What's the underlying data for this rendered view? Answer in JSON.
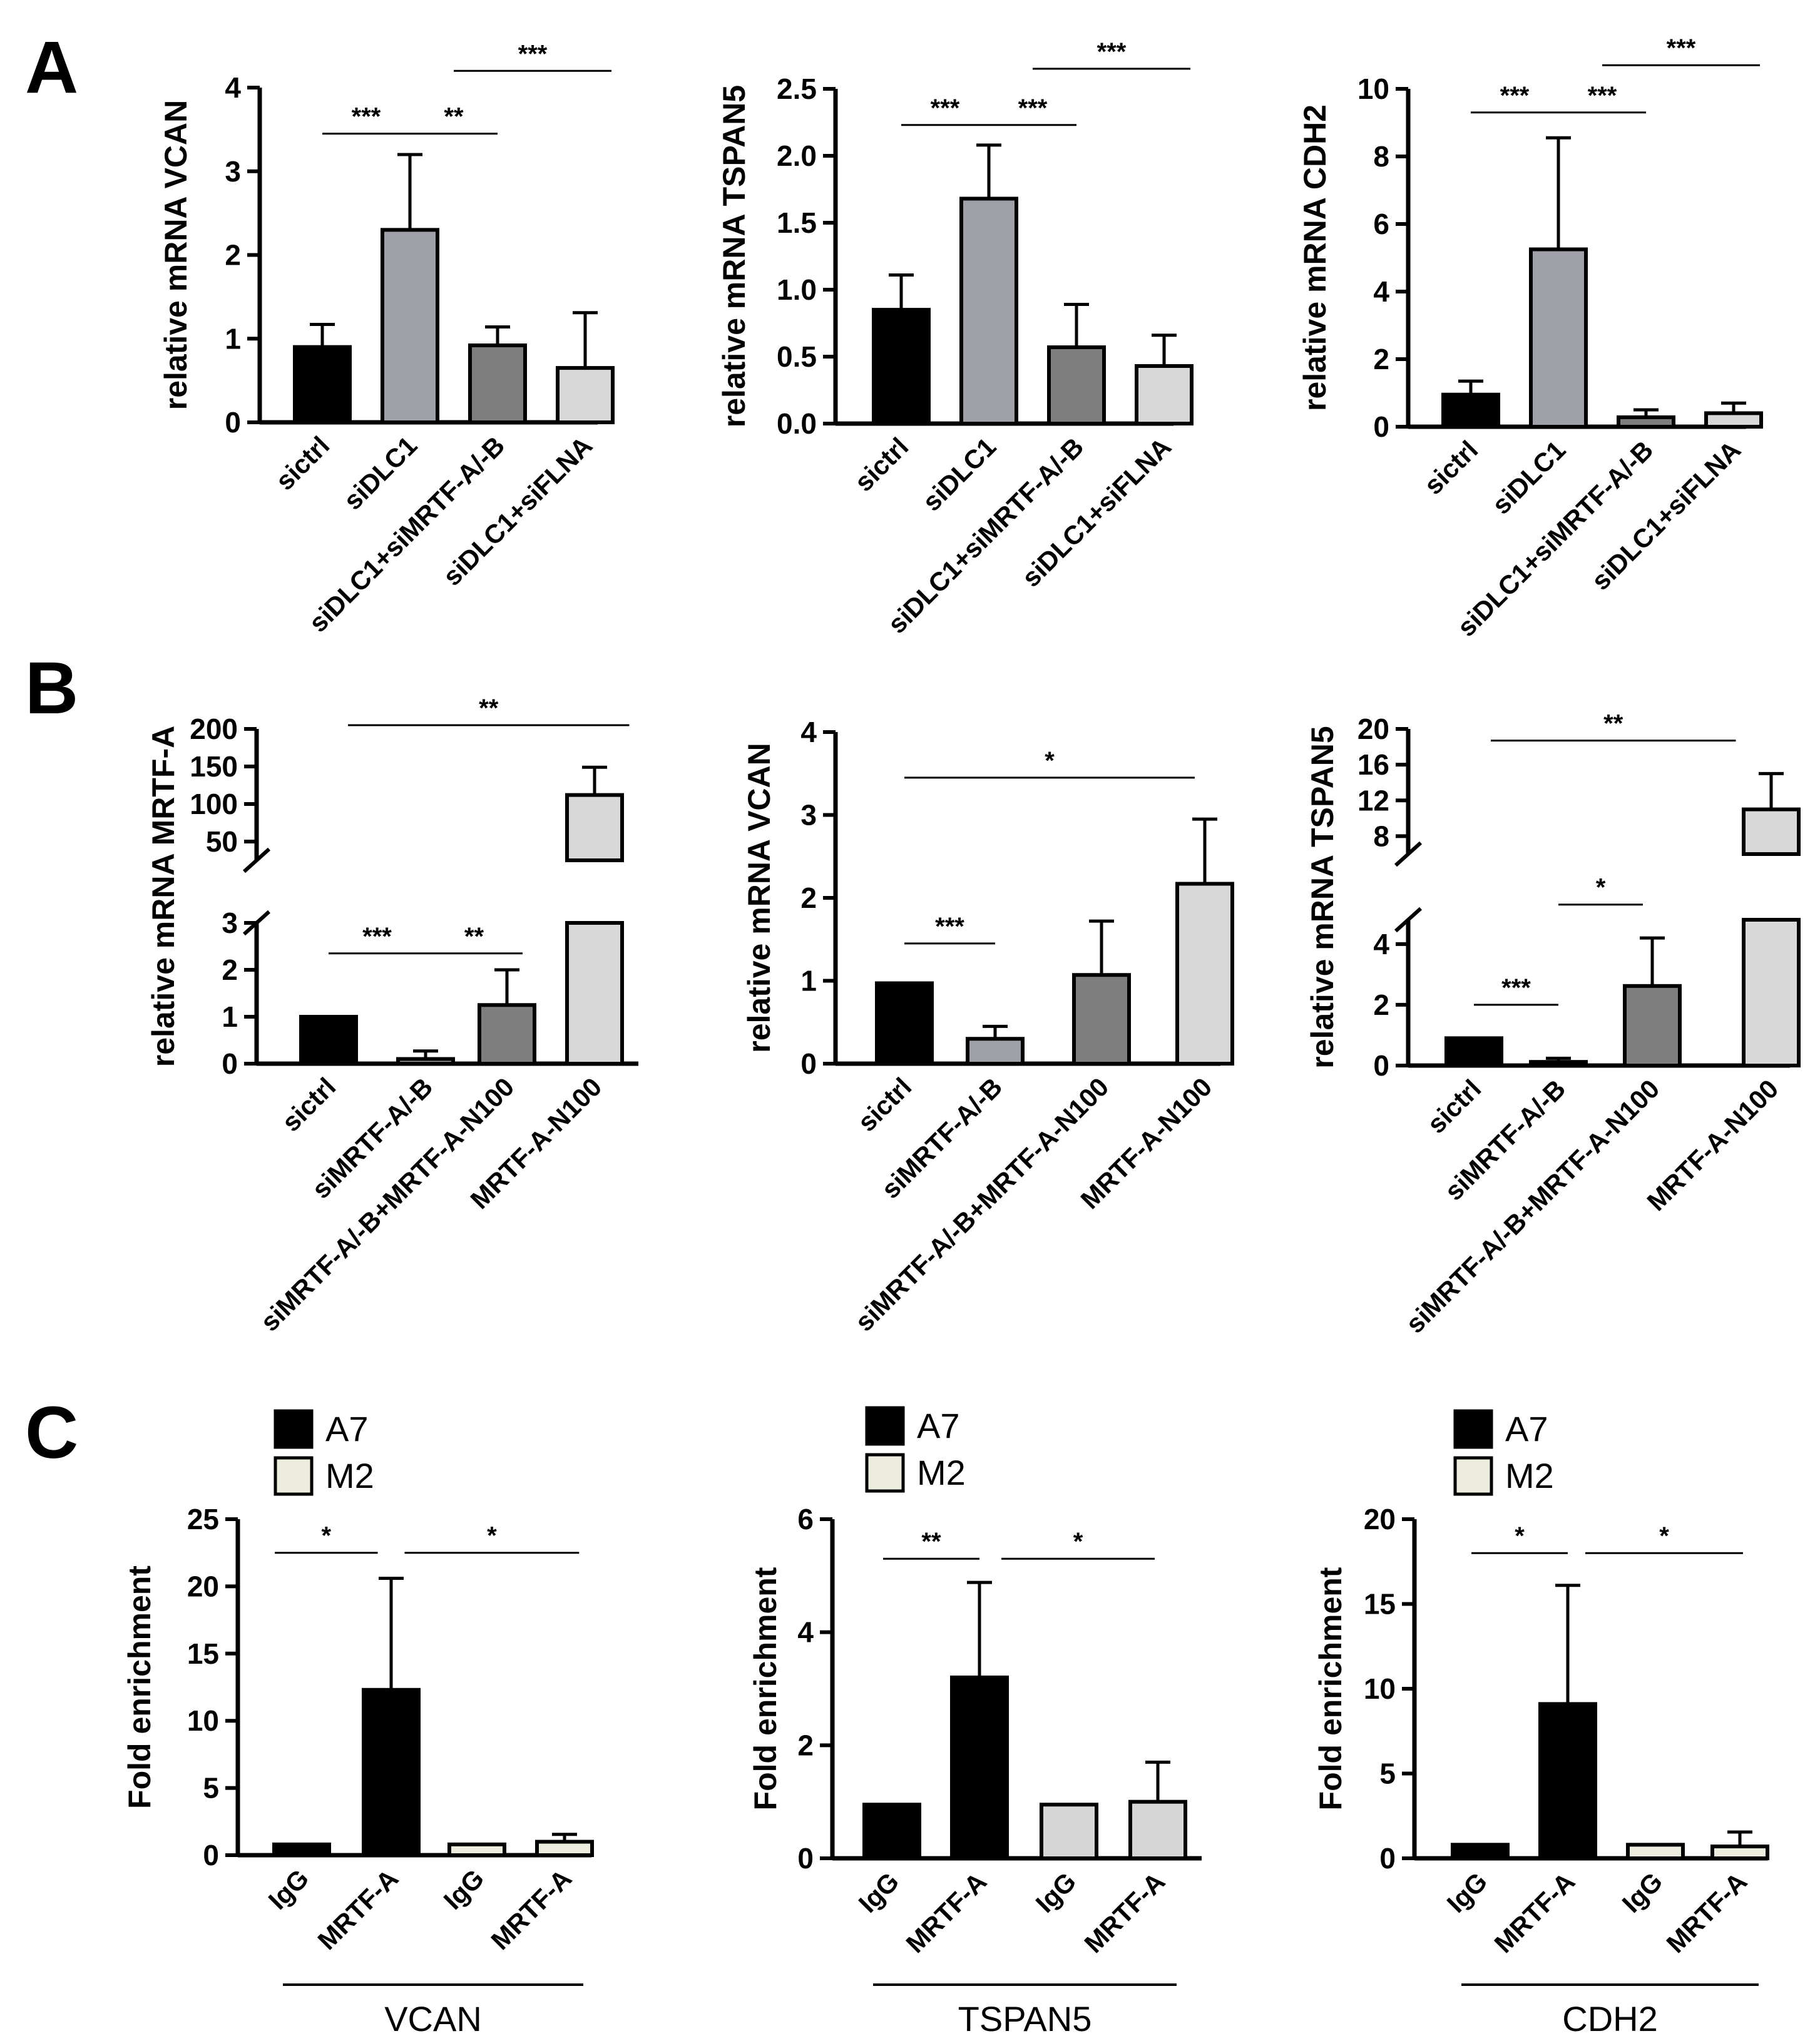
{
  "panels": [
    {
      "letter": "A"
    },
    {
      "letter": "B"
    },
    {
      "letter": "C"
    }
  ],
  "legend": {
    "entries": [
      {
        "name": "A7",
        "color": "#000000"
      },
      {
        "name": "M2",
        "color": "#ececdf"
      }
    ]
  },
  "chart_data": [
    {
      "id": "A1",
      "panel": "A",
      "type": "bar",
      "ylabel": "relative mRNA VCAN",
      "categories": [
        "sictrl",
        "siDLC1",
        "siDLC1+siMRTF-A/-B",
        "siDLC1+siFLNA"
      ],
      "values": [
        0.9,
        2.3,
        0.92,
        0.65
      ],
      "errors": [
        0.27,
        0.9,
        0.22,
        0.66
      ],
      "colors": [
        "#000000",
        "#a0a0a8",
        "#7e7e7e",
        "#d8d8d8"
      ],
      "ylim": [
        0,
        4
      ],
      "yticks": [
        0,
        1,
        2,
        3,
        4
      ],
      "ytick_labels": [
        "0",
        "1",
        "2",
        "3",
        "4"
      ],
      "significance": [
        {
          "label": "***",
          "from": 0,
          "to": 1,
          "level": 3.45
        },
        {
          "label": "**",
          "from": 1,
          "to": 2,
          "level": 3.45
        },
        {
          "label": "***",
          "from": 1.5,
          "to": 3.3,
          "level": 4.2
        }
      ]
    },
    {
      "id": "A2",
      "panel": "A",
      "type": "bar",
      "ylabel": "relative mRNA TSPAN5",
      "categories": [
        "sictrl",
        "siDLC1",
        "siDLC1+siMRTF-A/-B",
        "siDLC1+siFLNA"
      ],
      "values": [
        0.85,
        1.68,
        0.57,
        0.43
      ],
      "errors": [
        0.26,
        0.4,
        0.32,
        0.23
      ],
      "colors": [
        "#000000",
        "#a0a0a8",
        "#7e7e7e",
        "#d8d8d8"
      ],
      "ylim": [
        0,
        2.5
      ],
      "yticks": [
        0,
        0.5,
        1.0,
        1.5,
        2.0,
        2.5
      ],
      "ytick_labels": [
        "0.0",
        "0.5",
        "1.0",
        "1.5",
        "2.0",
        "2.5"
      ],
      "significance": [
        {
          "label": "***",
          "from": 0,
          "to": 1,
          "level": 2.23
        },
        {
          "label": "***",
          "from": 1,
          "to": 2,
          "level": 2.23
        },
        {
          "label": "***",
          "from": 1.5,
          "to": 3.3,
          "level": 2.65
        }
      ]
    },
    {
      "id": "A3",
      "panel": "A",
      "type": "bar",
      "ylabel": "relative mRNA CDH2",
      "categories": [
        "sictrl",
        "siDLC1",
        "siDLC1+siMRTF-A/-B",
        "siDLC1+siFLNA"
      ],
      "values": [
        0.95,
        5.25,
        0.28,
        0.4
      ],
      "errors": [
        0.4,
        3.3,
        0.22,
        0.3
      ],
      "colors": [
        "#000000",
        "#a0a0a8",
        "#7e7e7e",
        "#d8d8d8"
      ],
      "ylim": [
        0,
        10
      ],
      "yticks": [
        0,
        2,
        4,
        6,
        8,
        10
      ],
      "ytick_labels": [
        "0",
        "2",
        "4",
        "6",
        "8",
        "10"
      ],
      "significance": [
        {
          "label": "***",
          "from": 0,
          "to": 1,
          "level": 9.3
        },
        {
          "label": "***",
          "from": 1,
          "to": 2,
          "level": 9.3
        },
        {
          "label": "***",
          "from": 1.5,
          "to": 3.3,
          "level": 10.7
        }
      ]
    },
    {
      "id": "B1",
      "panel": "B",
      "type": "bar",
      "broken_axis": true,
      "ylabel": "relative mRNA MRTF-A",
      "categories": [
        "sictrl",
        "siMRTF-A/-B",
        "siMRTF-A/-B+MRTF-A-N100",
        "MRTF-A-N100"
      ],
      "values": [
        1.0,
        0.1,
        1.25,
        112
      ],
      "errors": [
        0.0,
        0.17,
        0.75,
        37
      ],
      "colors": [
        "#000000",
        "#a0a0a8",
        "#7e7e7e",
        "#d8d8d8"
      ],
      "lower_ylim": [
        0,
        3
      ],
      "lower_ticks": [
        0,
        1,
        2,
        3
      ],
      "lower_tick_labels": [
        "0",
        "1",
        "2",
        "3"
      ],
      "upper_ylim": [
        25,
        200
      ],
      "upper_ticks": [
        50,
        100,
        150,
        200
      ],
      "upper_tick_labels": [
        "50",
        "100",
        "150",
        "200"
      ],
      "significance": [
        {
          "label": "***",
          "from": 0,
          "to": 1,
          "segment": "lower",
          "level": 2.35
        },
        {
          "label": "**",
          "from": 1,
          "to": 2,
          "segment": "lower",
          "level": 2.35
        },
        {
          "label": "**",
          "from": 0.2,
          "to": 3.1,
          "segment": "upper",
          "level": 205
        }
      ]
    },
    {
      "id": "B2",
      "panel": "B",
      "type": "bar",
      "ylabel": "relative mRNA VCAN",
      "categories": [
        "sictrl",
        "siMRTF-A/-B",
        "siMRTF-A/-B+MRTF-A-N100",
        "MRTF-A-N100"
      ],
      "values": [
        0.97,
        0.3,
        1.07,
        2.17
      ],
      "errors": [
        0.0,
        0.15,
        0.65,
        0.78
      ],
      "colors": [
        "#000000",
        "#a0a0a8",
        "#7e7e7e",
        "#d8d8d8"
      ],
      "ylim": [
        0,
        4
      ],
      "yticks": [
        0,
        1,
        2,
        3,
        4
      ],
      "ytick_labels": [
        "0",
        "1",
        "2",
        "3",
        "4"
      ],
      "significance": [
        {
          "label": "***",
          "from": 0,
          "to": 1,
          "level": 1.45
        },
        {
          "label": "*",
          "from": 0,
          "to": 3.2,
          "level": 3.45
        }
      ]
    },
    {
      "id": "B3",
      "panel": "B",
      "type": "bar",
      "broken_axis": true,
      "ylabel": "relative mRNA TSPAN5",
      "categories": [
        "sictrl",
        "siMRTF-A/-B",
        "siMRTF-A/-B+MRTF-A-N100",
        "MRTF-A-N100"
      ],
      "values": [
        0.9,
        0.12,
        2.62,
        11
      ],
      "errors": [
        0.0,
        0.12,
        1.58,
        4
      ],
      "colors": [
        "#000000",
        "#a0a0a8",
        "#7e7e7e",
        "#d8d8d8"
      ],
      "lower_ylim": [
        0,
        4.8
      ],
      "lower_ticks": [
        0,
        2,
        4
      ],
      "lower_tick_labels": [
        "0",
        "2",
        "4"
      ],
      "upper_ylim": [
        6,
        20
      ],
      "upper_ticks": [
        8,
        12,
        16,
        20
      ],
      "upper_tick_labels": [
        "8",
        "12",
        "16",
        "20"
      ],
      "significance": [
        {
          "label": "***",
          "from": 0,
          "to": 1,
          "segment": "lower",
          "level": 2.0
        },
        {
          "label": "*",
          "from": 1,
          "to": 2,
          "segment": "lower",
          "level": 5.3
        },
        {
          "label": "**",
          "from": 0.2,
          "to": 3.1,
          "segment": "upper",
          "level": 18.7
        }
      ]
    },
    {
      "id": "C1",
      "panel": "C",
      "type": "bar",
      "ylabel": "Fold enrichment",
      "group_label": "VCAN",
      "categories": [
        "IgG",
        "MRTF-A",
        "IgG",
        "MRTF-A"
      ],
      "series_of_bar": [
        "A7",
        "A7",
        "M2",
        "M2"
      ],
      "values": [
        0.8,
        12.3,
        0.8,
        1.0
      ],
      "errors": [
        0.0,
        8.3,
        0.0,
        0.55
      ],
      "colors": [
        "#000000",
        "#000000",
        "#ececdf",
        "#ececdf"
      ],
      "ylim": [
        0,
        25
      ],
      "yticks": [
        0,
        5,
        10,
        15,
        20,
        25
      ],
      "ytick_labels": [
        "0",
        "5",
        "10",
        "15",
        "20",
        "25"
      ],
      "significance": [
        {
          "label": "*",
          "from": -0.3,
          "to": 0.85,
          "level": 22.5
        },
        {
          "label": "*",
          "from": 1.15,
          "to": 3.1,
          "level": 22.5
        }
      ]
    },
    {
      "id": "C2",
      "panel": "C",
      "type": "bar",
      "ylabel": "Fold enrichment",
      "group_label": "TSPAN5",
      "categories": [
        "IgG",
        "MRTF-A",
        "IgG",
        "MRTF-A"
      ],
      "series_of_bar": [
        "A7",
        "A7",
        "M2",
        "M2"
      ],
      "values": [
        0.95,
        3.2,
        0.95,
        1.0
      ],
      "errors": [
        0.0,
        1.68,
        0.0,
        0.7
      ],
      "colors": [
        "#000000",
        "#000000",
        "#d6d6d6",
        "#d6d6d6"
      ],
      "ylim": [
        0,
        6
      ],
      "yticks": [
        0,
        2,
        4,
        6
      ],
      "ytick_labels": [
        "0",
        "2",
        "4",
        "6"
      ],
      "significance": [
        {
          "label": "**",
          "from": -0.1,
          "to": 1,
          "level": 5.3
        },
        {
          "label": "*",
          "from": 1.25,
          "to": 3,
          "level": 5.3
        }
      ]
    },
    {
      "id": "C3",
      "panel": "C",
      "type": "bar",
      "ylabel": "Fold enrichment",
      "group_label": "CDH2",
      "categories": [
        "IgG",
        "MRTF-A",
        "IgG",
        "MRTF-A"
      ],
      "series_of_bar": [
        "A7",
        "A7",
        "M2",
        "M2"
      ],
      "values": [
        0.8,
        9.1,
        0.8,
        0.7
      ],
      "errors": [
        0.0,
        7.0,
        0.0,
        0.85
      ],
      "colors": [
        "#000000",
        "#000000",
        "#ececdf",
        "#ececdf"
      ],
      "ylim": [
        0,
        20
      ],
      "yticks": [
        0,
        5,
        10,
        15,
        20
      ],
      "ytick_labels": [
        "0",
        "5",
        "10",
        "15",
        "20"
      ],
      "significance": [
        {
          "label": "*",
          "from": -0.1,
          "to": 1,
          "level": 18.0
        },
        {
          "label": "*",
          "from": 1.2,
          "to": 3,
          "level": 18.0
        }
      ]
    }
  ]
}
